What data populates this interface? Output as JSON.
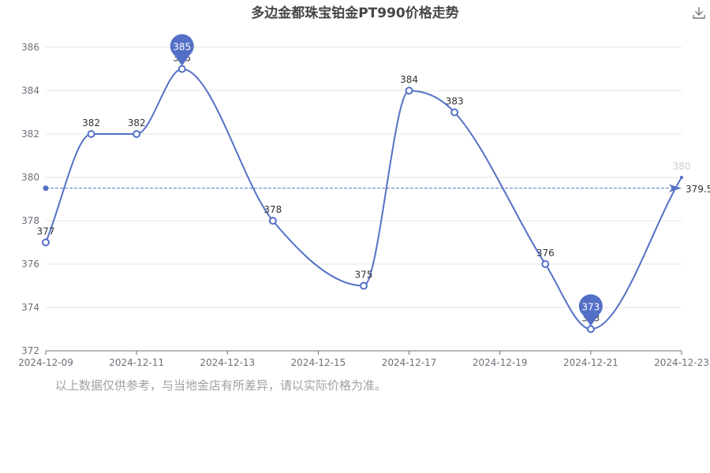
{
  "chart_data": {
    "type": "line",
    "title": "多边金都珠宝铂金PT990价格走势",
    "x": [
      "2024-12-09",
      "2024-12-10",
      "2024-12-11",
      "2024-12-12",
      "2024-12-13",
      "2024-12-14",
      "2024-12-15",
      "2024-12-16",
      "2024-12-17",
      "2024-12-18",
      "2024-12-19",
      "2024-12-20",
      "2024-12-21",
      "2024-12-22",
      "2024-12-23"
    ],
    "xtick_labels": [
      "2024-12-09",
      "2024-12-11",
      "2024-12-13",
      "2024-12-15",
      "2024-12-17",
      "2024-12-19",
      "2024-12-21",
      "2024-12-23"
    ],
    "series": [
      {
        "values": [
          377,
          382,
          382,
          385,
          null,
          378,
          null,
          375,
          384,
          383,
          null,
          376,
          373,
          null,
          380
        ]
      }
    ],
    "ylim": [
      372,
      386
    ],
    "yticks": [
      372,
      374,
      376,
      378,
      380,
      382,
      384,
      386
    ],
    "average_line": {
      "value": 379.5,
      "label": "379.5"
    },
    "max_marker": {
      "value": 385,
      "label": "385"
    },
    "min_marker": {
      "value": 373,
      "label": "373"
    },
    "grid": true,
    "line_color": "#5470c6"
  },
  "toolbar": {
    "download_icon": "download-icon"
  },
  "footer": {
    "disclaimer": "以上数据仅供参考，与当地金店有所差异，请以实际价格为准。"
  }
}
